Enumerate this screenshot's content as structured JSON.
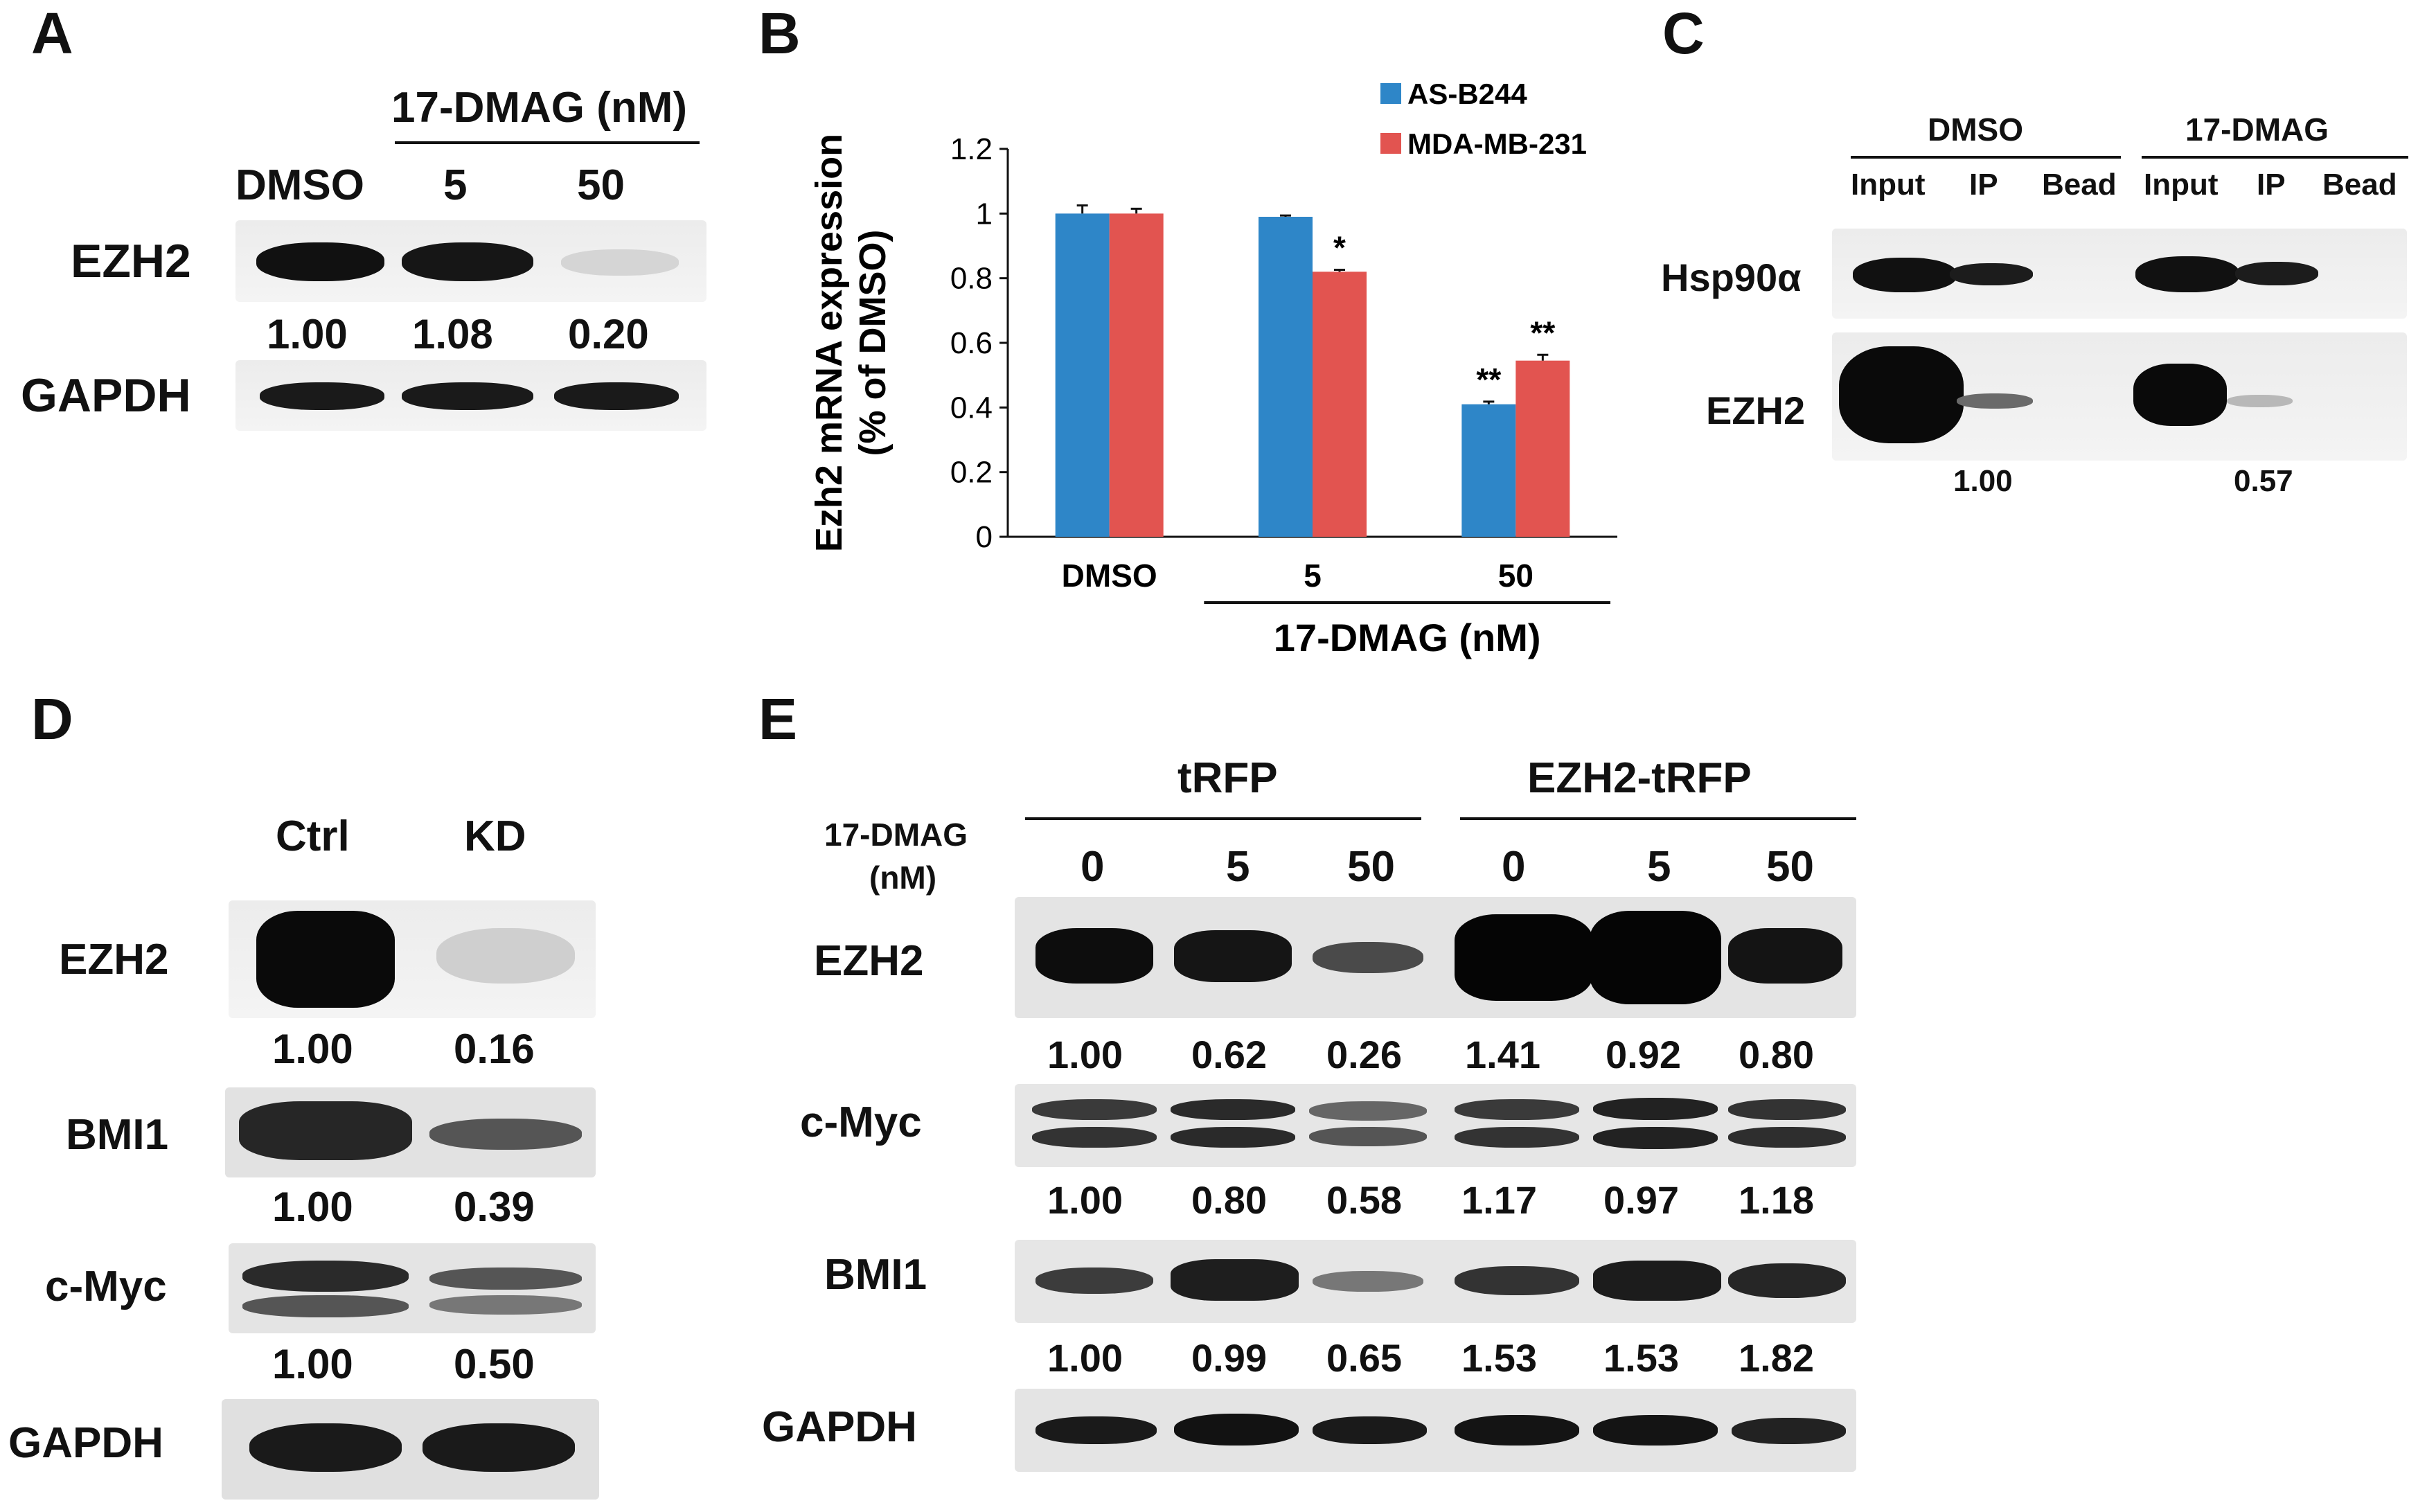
{
  "panelA": {
    "letter": "A",
    "treatment": "17-DMAG (nM)",
    "lanes": [
      "DMSO",
      "5",
      "50"
    ],
    "rows": [
      {
        "name": "EZH2",
        "quant": [
          "1.00",
          "1.08",
          "0.20"
        ]
      },
      {
        "name": "GAPDH",
        "quant": []
      }
    ]
  },
  "panelB": {
    "letter": "B",
    "chart_data": {
      "type": "bar",
      "categories": [
        "DMSO",
        "5",
        "50"
      ],
      "series": [
        {
          "name": "AS-B244",
          "color": "#2e86c8",
          "values": [
            1.0,
            0.99,
            0.41
          ],
          "errors": [
            0.025,
            0.004,
            0.008
          ],
          "sig": [
            "",
            "",
            "**"
          ]
        },
        {
          "name": "MDA-MB-231",
          "color": "#e25450",
          "values": [
            1.0,
            0.82,
            0.545
          ],
          "errors": [
            0.015,
            0.006,
            0.018
          ],
          "sig": [
            "",
            "*",
            "**"
          ]
        }
      ],
      "ylabel_line1": "Ezh2 mRNA expression",
      "ylabel_line2": "(% of DMSO)",
      "xlabel": "17-DMAG (nM)",
      "ylim": [
        0,
        1.2
      ],
      "yticks": [
        "0",
        "0.2",
        "0.4",
        "0.6",
        "0.8",
        "1",
        "1.2"
      ],
      "legend_position": "top-right",
      "grid": false
    }
  },
  "panelC": {
    "letter": "C",
    "groups": [
      "DMSO",
      "17-DMAG"
    ],
    "lanes": [
      "Input",
      "IP",
      "Bead",
      "Input",
      "IP",
      "Bead"
    ],
    "rows": [
      "Hsp90α",
      "EZH2"
    ],
    "quant": [
      "1.00",
      "0.57"
    ]
  },
  "panelD": {
    "letter": "D",
    "lanes": [
      "Ctrl",
      "KD"
    ],
    "rows": [
      {
        "name": "EZH2",
        "quant": [
          "1.00",
          "0.16"
        ]
      },
      {
        "name": "BMI1",
        "quant": [
          "1.00",
          "0.39"
        ]
      },
      {
        "name": "c-Myc",
        "quant": [
          "1.00",
          "0.50"
        ]
      },
      {
        "name": "GAPDH",
        "quant": []
      }
    ]
  },
  "panelE": {
    "letter": "E",
    "groups": [
      "tRFP",
      "EZH2-tRFP"
    ],
    "treatment_line1": "17-DMAG",
    "treatment_line2": "(nM)",
    "lanes": [
      "0",
      "5",
      "50",
      "0",
      "5",
      "50"
    ],
    "rows": [
      {
        "name": "EZH2",
        "quant": [
          "1.00",
          "0.62",
          "0.26",
          "1.41",
          "0.92",
          "0.80"
        ]
      },
      {
        "name": "c-Myc",
        "quant": [
          "1.00",
          "0.80",
          "0.58",
          "1.17",
          "0.97",
          "1.18"
        ]
      },
      {
        "name": "BMI1",
        "quant": [
          "1.00",
          "0.99",
          "0.65",
          "1.53",
          "1.53",
          "1.82"
        ]
      },
      {
        "name": "GAPDH",
        "quant": []
      }
    ]
  }
}
